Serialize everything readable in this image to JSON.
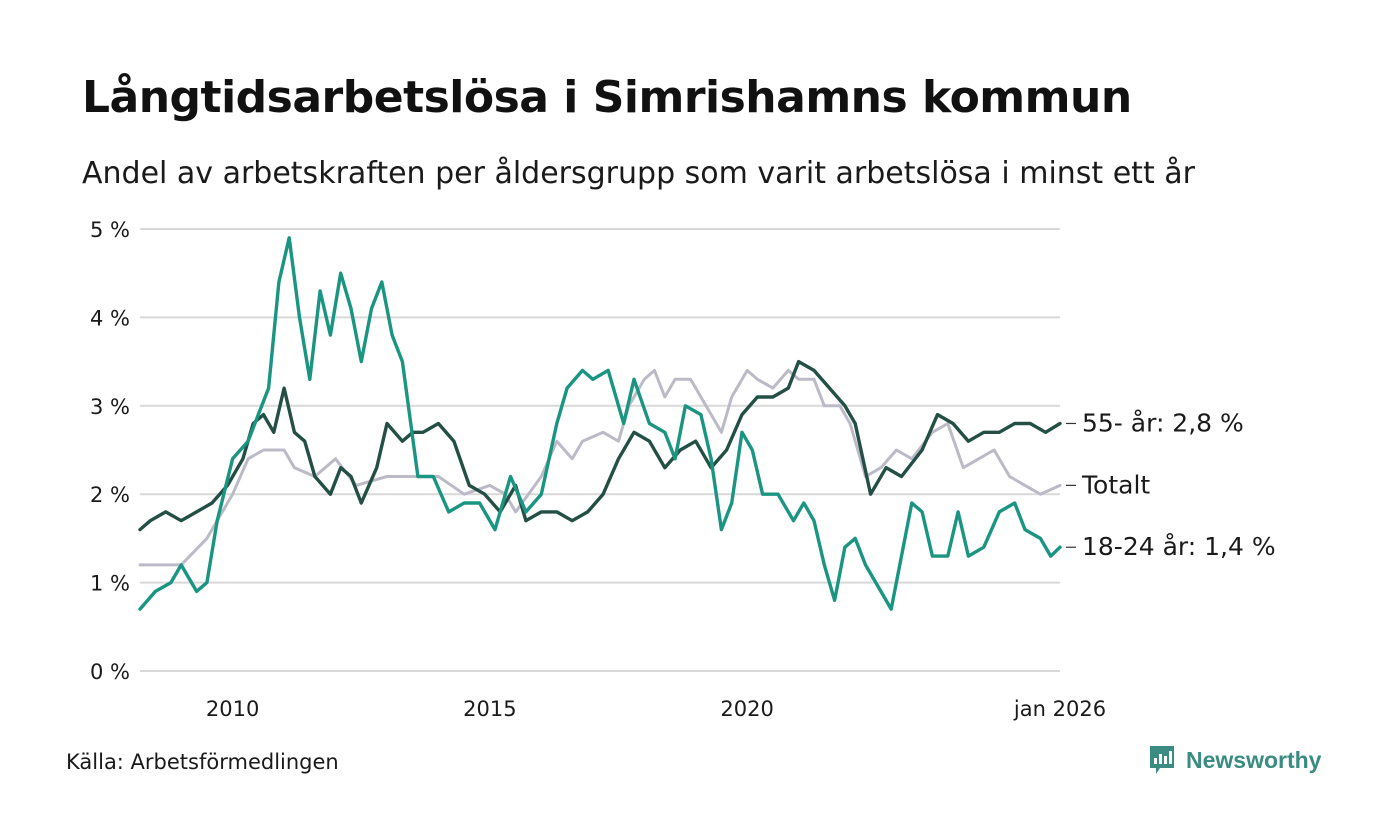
{
  "header": {
    "title": "Långtidsarbetslösa i Simrishamns kommun",
    "subtitle": "Andel av arbetskraften per åldersgrupp som varit arbetslösa i minst ett år"
  },
  "footer": {
    "source": "Källa: Arbetsförmedlingen",
    "brand": "Newsworthy"
  },
  "colors": {
    "young": "#1a9582",
    "old": "#234f45",
    "total": "#bdbac8",
    "grid": "#d9d9d9"
  },
  "chart_data": {
    "type": "line",
    "title": "Långtidsarbetslösa i Simrishamns kommun",
    "subtitle": "Andel av arbetskraften per åldersgrupp som varit arbetslösa i minst ett år",
    "xlabel": "",
    "ylabel": "",
    "xlim": [
      2008.2,
      2026.08
    ],
    "ylim": [
      0,
      5
    ],
    "y_ticks": [
      {
        "value": 0,
        "label": "0 %"
      },
      {
        "value": 1,
        "label": "1 %"
      },
      {
        "value": 2,
        "label": "2 %"
      },
      {
        "value": 3,
        "label": "3 %"
      },
      {
        "value": 4,
        "label": "4 %"
      },
      {
        "value": 5,
        "label": "5 %"
      }
    ],
    "x_ticks": [
      {
        "value": 2010,
        "label": "2010"
      },
      {
        "value": 2015,
        "label": "2015"
      },
      {
        "value": 2020,
        "label": "2020"
      },
      {
        "value": 2026.08,
        "label": "jan 2026"
      }
    ],
    "grid": true,
    "series": [
      {
        "name": "Totalt",
        "label": "Totalt",
        "color": "#bdbac8",
        "points": [
          [
            2008.2,
            1.2
          ],
          [
            2009.0,
            1.2
          ],
          [
            2009.5,
            1.5
          ],
          [
            2010.0,
            2.0
          ],
          [
            2010.3,
            2.4
          ],
          [
            2010.6,
            2.5
          ],
          [
            2011.0,
            2.5
          ],
          [
            2011.2,
            2.3
          ],
          [
            2011.6,
            2.2
          ],
          [
            2012.0,
            2.4
          ],
          [
            2012.4,
            2.1
          ],
          [
            2013.0,
            2.2
          ],
          [
            2013.5,
            2.2
          ],
          [
            2014.0,
            2.2
          ],
          [
            2014.5,
            2.0
          ],
          [
            2015.0,
            2.1
          ],
          [
            2015.3,
            2.0
          ],
          [
            2015.5,
            1.8
          ],
          [
            2016.0,
            2.2
          ],
          [
            2016.3,
            2.6
          ],
          [
            2016.6,
            2.4
          ],
          [
            2016.8,
            2.6
          ],
          [
            2017.2,
            2.7
          ],
          [
            2017.5,
            2.6
          ],
          [
            2017.7,
            3.0
          ],
          [
            2018.0,
            3.3
          ],
          [
            2018.2,
            3.4
          ],
          [
            2018.4,
            3.1
          ],
          [
            2018.6,
            3.3
          ],
          [
            2018.9,
            3.3
          ],
          [
            2019.2,
            3.0
          ],
          [
            2019.5,
            2.7
          ],
          [
            2019.7,
            3.1
          ],
          [
            2020.0,
            3.4
          ],
          [
            2020.2,
            3.3
          ],
          [
            2020.5,
            3.2
          ],
          [
            2020.8,
            3.4
          ],
          [
            2021.0,
            3.3
          ],
          [
            2021.3,
            3.3
          ],
          [
            2021.5,
            3.0
          ],
          [
            2021.8,
            3.0
          ],
          [
            2022.0,
            2.8
          ],
          [
            2022.3,
            2.2
          ],
          [
            2022.6,
            2.3
          ],
          [
            2022.9,
            2.5
          ],
          [
            2023.2,
            2.4
          ],
          [
            2023.6,
            2.7
          ],
          [
            2023.9,
            2.8
          ],
          [
            2024.2,
            2.3
          ],
          [
            2024.5,
            2.4
          ],
          [
            2024.8,
            2.5
          ],
          [
            2025.1,
            2.2
          ],
          [
            2025.4,
            2.1
          ],
          [
            2025.7,
            2.0
          ],
          [
            2026.08,
            2.1
          ]
        ],
        "end_value": 2.1
      },
      {
        "name": "55- år",
        "label": "55- år: 2,8 %",
        "color": "#234f45",
        "points": [
          [
            2008.2,
            1.6
          ],
          [
            2008.4,
            1.7
          ],
          [
            2008.7,
            1.8
          ],
          [
            2009.0,
            1.7
          ],
          [
            2009.3,
            1.8
          ],
          [
            2009.6,
            1.9
          ],
          [
            2009.9,
            2.1
          ],
          [
            2010.2,
            2.4
          ],
          [
            2010.4,
            2.8
          ],
          [
            2010.6,
            2.9
          ],
          [
            2010.8,
            2.7
          ],
          [
            2011.0,
            3.2
          ],
          [
            2011.2,
            2.7
          ],
          [
            2011.4,
            2.6
          ],
          [
            2011.6,
            2.2
          ],
          [
            2011.9,
            2.0
          ],
          [
            2012.1,
            2.3
          ],
          [
            2012.3,
            2.2
          ],
          [
            2012.5,
            1.9
          ],
          [
            2012.8,
            2.3
          ],
          [
            2013.0,
            2.8
          ],
          [
            2013.3,
            2.6
          ],
          [
            2013.5,
            2.7
          ],
          [
            2013.7,
            2.7
          ],
          [
            2014.0,
            2.8
          ],
          [
            2014.3,
            2.6
          ],
          [
            2014.6,
            2.1
          ],
          [
            2014.9,
            2.0
          ],
          [
            2015.2,
            1.8
          ],
          [
            2015.5,
            2.1
          ],
          [
            2015.7,
            1.7
          ],
          [
            2016.0,
            1.8
          ],
          [
            2016.3,
            1.8
          ],
          [
            2016.6,
            1.7
          ],
          [
            2016.9,
            1.8
          ],
          [
            2017.2,
            2.0
          ],
          [
            2017.5,
            2.4
          ],
          [
            2017.8,
            2.7
          ],
          [
            2018.1,
            2.6
          ],
          [
            2018.4,
            2.3
          ],
          [
            2018.7,
            2.5
          ],
          [
            2019.0,
            2.6
          ],
          [
            2019.3,
            2.3
          ],
          [
            2019.6,
            2.5
          ],
          [
            2019.9,
            2.9
          ],
          [
            2020.2,
            3.1
          ],
          [
            2020.5,
            3.1
          ],
          [
            2020.8,
            3.2
          ],
          [
            2021.0,
            3.5
          ],
          [
            2021.3,
            3.4
          ],
          [
            2021.6,
            3.2
          ],
          [
            2021.9,
            3.0
          ],
          [
            2022.1,
            2.8
          ],
          [
            2022.4,
            2.0
          ],
          [
            2022.7,
            2.3
          ],
          [
            2023.0,
            2.2
          ],
          [
            2023.4,
            2.5
          ],
          [
            2023.7,
            2.9
          ],
          [
            2024.0,
            2.8
          ],
          [
            2024.3,
            2.6
          ],
          [
            2024.6,
            2.7
          ],
          [
            2024.9,
            2.7
          ],
          [
            2025.2,
            2.8
          ],
          [
            2025.5,
            2.8
          ],
          [
            2025.8,
            2.7
          ],
          [
            2026.08,
            2.8
          ]
        ],
        "end_value": 2.8
      },
      {
        "name": "18-24 år",
        "label": "18-24 år: 1,4 %",
        "color": "#1a9582",
        "points": [
          [
            2008.2,
            0.7
          ],
          [
            2008.5,
            0.9
          ],
          [
            2008.8,
            1.0
          ],
          [
            2009.0,
            1.2
          ],
          [
            2009.3,
            0.9
          ],
          [
            2009.5,
            1.0
          ],
          [
            2009.7,
            1.7
          ],
          [
            2010.0,
            2.4
          ],
          [
            2010.3,
            2.6
          ],
          [
            2010.5,
            2.9
          ],
          [
            2010.7,
            3.2
          ],
          [
            2010.9,
            4.4
          ],
          [
            2011.1,
            4.9
          ],
          [
            2011.3,
            4.0
          ],
          [
            2011.5,
            3.3
          ],
          [
            2011.7,
            4.3
          ],
          [
            2011.9,
            3.8
          ],
          [
            2012.1,
            4.5
          ],
          [
            2012.3,
            4.1
          ],
          [
            2012.5,
            3.5
          ],
          [
            2012.7,
            4.1
          ],
          [
            2012.9,
            4.4
          ],
          [
            2013.1,
            3.8
          ],
          [
            2013.3,
            3.5
          ],
          [
            2013.6,
            2.2
          ],
          [
            2013.9,
            2.2
          ],
          [
            2014.2,
            1.8
          ],
          [
            2014.5,
            1.9
          ],
          [
            2014.8,
            1.9
          ],
          [
            2015.1,
            1.6
          ],
          [
            2015.4,
            2.2
          ],
          [
            2015.7,
            1.8
          ],
          [
            2016.0,
            2.0
          ],
          [
            2016.3,
            2.8
          ],
          [
            2016.5,
            3.2
          ],
          [
            2016.8,
            3.4
          ],
          [
            2017.0,
            3.3
          ],
          [
            2017.3,
            3.4
          ],
          [
            2017.6,
            2.8
          ],
          [
            2017.8,
            3.3
          ],
          [
            2018.1,
            2.8
          ],
          [
            2018.4,
            2.7
          ],
          [
            2018.6,
            2.4
          ],
          [
            2018.8,
            3.0
          ],
          [
            2019.1,
            2.9
          ],
          [
            2019.3,
            2.4
          ],
          [
            2019.5,
            1.6
          ],
          [
            2019.7,
            1.9
          ],
          [
            2019.9,
            2.7
          ],
          [
            2020.1,
            2.5
          ],
          [
            2020.3,
            2.0
          ],
          [
            2020.6,
            2.0
          ],
          [
            2020.9,
            1.7
          ],
          [
            2021.1,
            1.9
          ],
          [
            2021.3,
            1.7
          ],
          [
            2021.5,
            1.2
          ],
          [
            2021.7,
            0.8
          ],
          [
            2021.9,
            1.4
          ],
          [
            2022.1,
            1.5
          ],
          [
            2022.3,
            1.2
          ],
          [
            2022.6,
            0.9
          ],
          [
            2022.8,
            0.7
          ],
          [
            2023.0,
            1.3
          ],
          [
            2023.2,
            1.9
          ],
          [
            2023.4,
            1.8
          ],
          [
            2023.6,
            1.3
          ],
          [
            2023.9,
            1.3
          ],
          [
            2024.1,
            1.8
          ],
          [
            2024.3,
            1.3
          ],
          [
            2024.6,
            1.4
          ],
          [
            2024.9,
            1.8
          ],
          [
            2025.2,
            1.9
          ],
          [
            2025.4,
            1.6
          ],
          [
            2025.7,
            1.5
          ],
          [
            2025.9,
            1.3
          ],
          [
            2026.08,
            1.4
          ]
        ],
        "end_value": 1.4
      }
    ]
  }
}
